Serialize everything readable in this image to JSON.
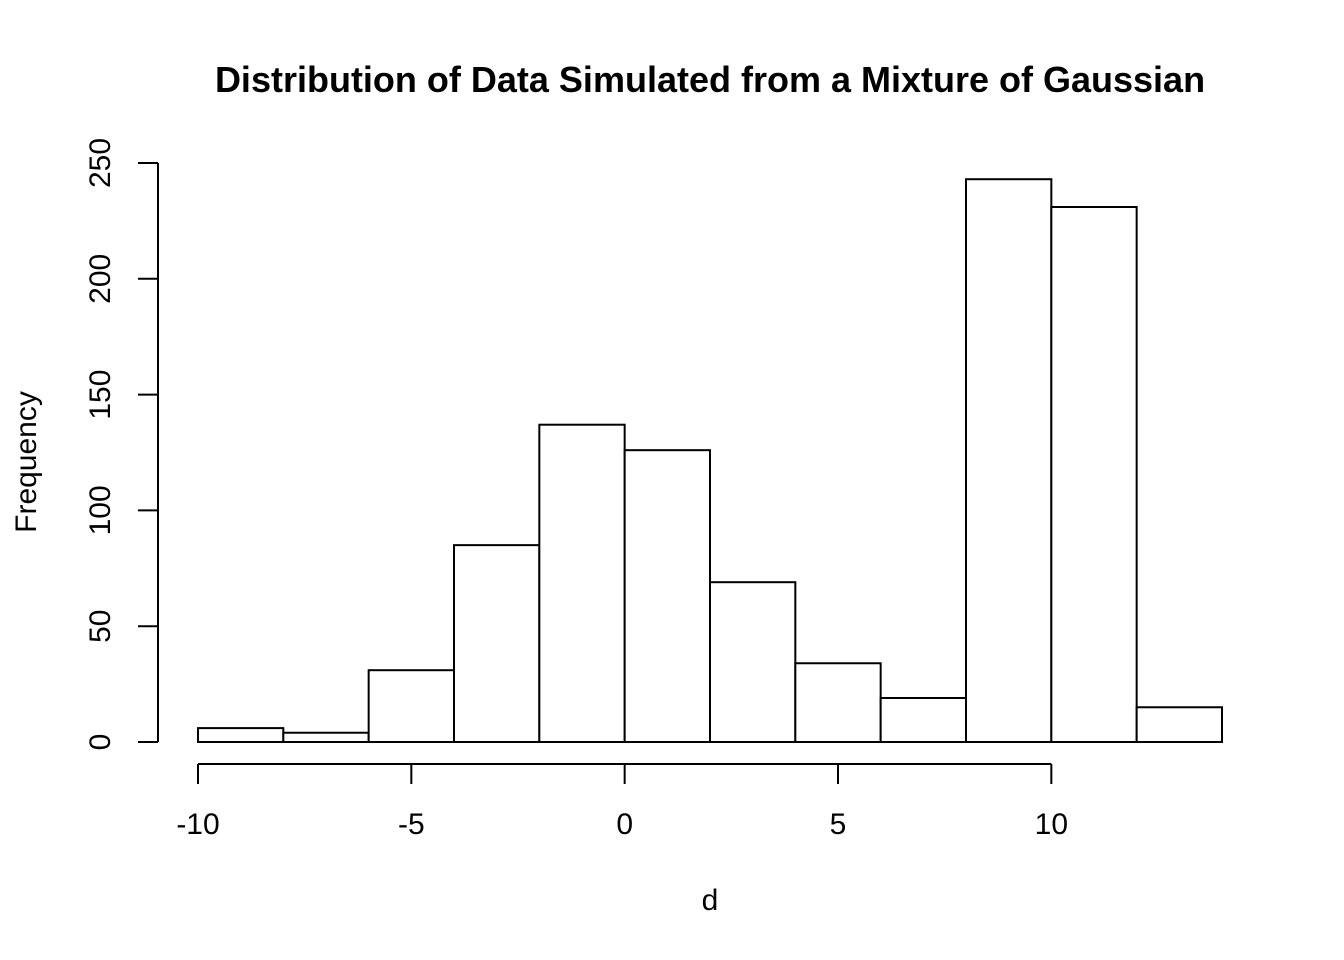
{
  "chart_data": {
    "type": "bar",
    "subtype": "histogram",
    "title": "Distribution of Data Simulated from a Mixture of Gaussian",
    "xlabel": "d",
    "ylabel": "Frequency",
    "bins": [
      {
        "x0": -10,
        "x1": -8,
        "count": 6
      },
      {
        "x0": -8,
        "x1": -6,
        "count": 4
      },
      {
        "x0": -6,
        "x1": -4,
        "count": 31
      },
      {
        "x0": -4,
        "x1": -2,
        "count": 85
      },
      {
        "x0": -2,
        "x1": 0,
        "count": 137
      },
      {
        "x0": 0,
        "x1": 2,
        "count": 126
      },
      {
        "x0": 2,
        "x1": 4,
        "count": 69
      },
      {
        "x0": 4,
        "x1": 6,
        "count": 34
      },
      {
        "x0": 6,
        "x1": 8,
        "count": 19
      },
      {
        "x0": 8,
        "x1": 10,
        "count": 243
      },
      {
        "x0": 10,
        "x1": 12,
        "count": 231
      },
      {
        "x0": 12,
        "x1": 14,
        "count": 15
      }
    ],
    "xlim": [
      -10,
      14
    ],
    "ylim": [
      0,
      250
    ],
    "x_ticks": [
      -10,
      -5,
      0,
      5,
      10
    ],
    "x_tick_labels": [
      "-10",
      "-5",
      "0",
      "5",
      "10"
    ],
    "y_ticks": [
      0,
      50,
      100,
      150,
      200,
      250
    ],
    "y_tick_labels": [
      "0",
      "50",
      "100",
      "150",
      "200",
      "250"
    ],
    "grid": false,
    "legend": "none",
    "colors": {
      "bar_fill": "#ffffff",
      "bar_stroke": "#000000",
      "background": "#ffffff"
    }
  }
}
